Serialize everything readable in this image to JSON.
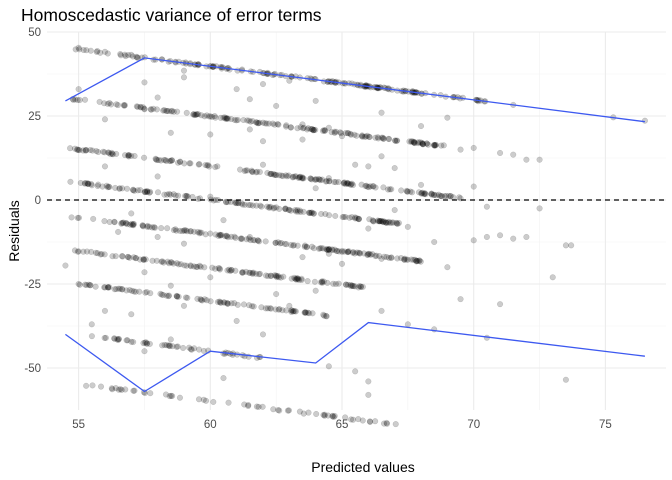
{
  "chart_data": {
    "type": "scatter",
    "title": "Homoscedastic variance of error terms",
    "xlabel": "Predicted values",
    "ylabel": "Residuals",
    "xlim": [
      53.8,
      77.3
    ],
    "ylim": [
      -62.5,
      50
    ],
    "x_ticks": [
      55,
      60,
      65,
      70,
      75
    ],
    "y_ticks": [
      -50,
      -25,
      0,
      25,
      50
    ],
    "x_tick_labels": [
      "55",
      "60",
      "65",
      "70",
      "75"
    ],
    "y_tick_labels": [
      "-50",
      "-25",
      "0",
      "25",
      "50"
    ],
    "grid": true,
    "reference_line": {
      "y": 0,
      "style": "dashed",
      "color": "#000000"
    },
    "point_color": "#000000",
    "point_opacity": 0.2,
    "band_color": "#3d59f0",
    "scatter_bands": [
      {
        "x_start": 54.6,
        "x_end": 70.5,
        "y_start": 45.2,
        "y_end": 29.3,
        "n": 170,
        "spread": 0.5
      },
      {
        "x_start": 54.6,
        "x_end": 69.0,
        "y_start": 30.3,
        "y_end": 15.9,
        "n": 160,
        "spread": 0.5
      },
      {
        "x_start": 54.6,
        "x_end": 69.5,
        "y_start": 15.5,
        "y_end": 0.6,
        "n": 165,
        "spread": 0.5
      },
      {
        "x_start": 54.6,
        "x_end": 67.5,
        "y_start": 5.5,
        "y_end": -7.4,
        "n": 140,
        "spread": 0.5
      },
      {
        "x_start": 54.6,
        "x_end": 68.0,
        "y_start": -4.8,
        "y_end": -18.2,
        "n": 155,
        "spread": 0.5
      },
      {
        "x_start": 54.6,
        "x_end": 66.0,
        "y_start": -14.8,
        "y_end": -26.2,
        "n": 120,
        "spread": 0.5
      },
      {
        "x_start": 55.0,
        "x_end": 64.5,
        "y_start": -25.0,
        "y_end": -34.5,
        "n": 90,
        "spread": 0.5
      },
      {
        "x_start": 55.5,
        "x_end": 62.0,
        "y_start": -40.5,
        "y_end": -47.0,
        "n": 50,
        "spread": 0.5
      },
      {
        "x_start": 55.2,
        "x_end": 67.2,
        "y_start": -55.0,
        "y_end": -67.0,
        "n": 60,
        "spread": 0.5
      }
    ],
    "scattered_points": [
      [
        55.0,
        45.3
      ],
      [
        56.0,
        44.1
      ],
      [
        57.0,
        43.2
      ],
      [
        59.0,
        36.5
      ],
      [
        61.0,
        33.0
      ],
      [
        62.0,
        34.5
      ],
      [
        63.0,
        35.5
      ],
      [
        58.0,
        30.5
      ],
      [
        60.5,
        24.5
      ],
      [
        62.5,
        28.0
      ],
      [
        63.5,
        22.5
      ],
      [
        57.5,
        27.0
      ],
      [
        56.0,
        24.0
      ],
      [
        59.5,
        25.5
      ],
      [
        64.5,
        21.5
      ],
      [
        58.5,
        20.0
      ],
      [
        61.5,
        21.0
      ],
      [
        60.0,
        19.5
      ],
      [
        62.0,
        17.5
      ],
      [
        63.5,
        18.0
      ],
      [
        65.0,
        19.0
      ],
      [
        66.0,
        10.0
      ],
      [
        67.0,
        9.5
      ],
      [
        68.0,
        4.5
      ],
      [
        69.5,
        0.5
      ],
      [
        70.0,
        4.0
      ],
      [
        70.5,
        -2.0
      ],
      [
        72.5,
        -2.5
      ],
      [
        72.0,
        12.0
      ],
      [
        72.5,
        12.0
      ],
      [
        71.5,
        13.5
      ],
      [
        71.0,
        14.0
      ],
      [
        69.5,
        15.0
      ],
      [
        70.0,
        15.5
      ],
      [
        58.0,
        7.0
      ],
      [
        56.0,
        10.0
      ],
      [
        57.0,
        -4.0
      ],
      [
        60.5,
        -6.0
      ],
      [
        59.0,
        -13.0
      ],
      [
        61.5,
        -11.0
      ],
      [
        63.5,
        -17.0
      ],
      [
        64.5,
        -16.0
      ],
      [
        66.0,
        -8.5
      ],
      [
        67.5,
        -8.0
      ],
      [
        68.5,
        -12.5
      ],
      [
        69.0,
        -20.0
      ],
      [
        70.0,
        -12.0
      ],
      [
        70.5,
        -11.0
      ],
      [
        71.5,
        -11.5
      ],
      [
        73.5,
        -13.5
      ],
      [
        73.7,
        -13.5
      ],
      [
        72.0,
        -11.0
      ],
      [
        71.0,
        -10.5
      ],
      [
        54.5,
        -19.5
      ],
      [
        55.0,
        -25.0
      ],
      [
        56.0,
        -26.0
      ],
      [
        57.5,
        -21.5
      ],
      [
        58.5,
        -25.5
      ],
      [
        60.0,
        -23.0
      ],
      [
        62.5,
        -28.0
      ],
      [
        64.0,
        -27.0
      ],
      [
        63.0,
        -31.5
      ],
      [
        66.5,
        -33.0
      ],
      [
        67.5,
        -37.0
      ],
      [
        68.5,
        -38.5
      ],
      [
        69.5,
        -29.5
      ],
      [
        71.0,
        -31.0
      ],
      [
        73.0,
        -23.0
      ],
      [
        70.5,
        -41.0
      ],
      [
        73.5,
        -53.5
      ],
      [
        66.0,
        -58.0
      ],
      [
        66.0,
        -54.0
      ],
      [
        64.5,
        -49.5
      ],
      [
        65.5,
        -51.0
      ],
      [
        57.5,
        -45.0
      ],
      [
        58.5,
        -41.5
      ],
      [
        56.0,
        -33.0
      ],
      [
        57.0,
        -34.0
      ],
      [
        62.0,
        -40.0
      ],
      [
        60.5,
        -53.0
      ],
      [
        59.0,
        -31.5
      ],
      [
        61.0,
        -36.0
      ],
      [
        55.5,
        -37.0
      ],
      [
        58.0,
        -11.0
      ],
      [
        56.5,
        -9.5
      ],
      [
        62.0,
        10.5
      ],
      [
        64.5,
        6.5
      ],
      [
        65.5,
        10.5
      ],
      [
        66.5,
        13.0
      ],
      [
        67.0,
        -3.0
      ],
      [
        68.5,
        1.5
      ],
      [
        60.0,
        1.0
      ],
      [
        57.5,
        35.0
      ],
      [
        59.0,
        38.5
      ],
      [
        61.5,
        30.0
      ],
      [
        64.0,
        29.5
      ],
      [
        66.5,
        26.0
      ],
      [
        68.0,
        22.0
      ],
      [
        69.0,
        24.5
      ],
      [
        55.0,
        33.0
      ],
      [
        54.8,
        29.8
      ],
      [
        75.3,
        24.6
      ],
      [
        76.5,
        23.6
      ],
      [
        71.5,
        28.3
      ],
      [
        65.0,
        -19.0
      ],
      [
        66.5,
        -17.5
      ],
      [
        63.0,
        -3.0
      ],
      [
        64.0,
        3.5
      ]
    ],
    "upper_line": [
      [
        54.5,
        29.5
      ],
      [
        57.5,
        42.3
      ],
      [
        76.5,
        23.3
      ]
    ],
    "lower_line": [
      [
        54.5,
        -40.0
      ],
      [
        57.5,
        -57.0
      ],
      [
        60.0,
        -45.0
      ],
      [
        64.0,
        -48.5
      ],
      [
        66.0,
        -36.5
      ],
      [
        76.5,
        -46.5
      ]
    ]
  }
}
